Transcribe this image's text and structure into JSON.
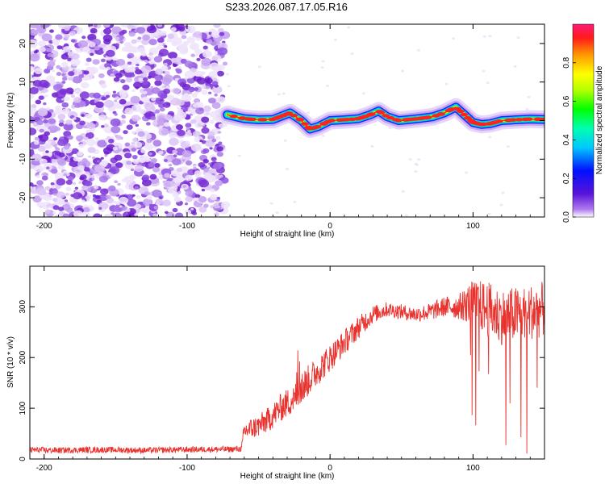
{
  "title": "S233.2026.087.17.05.R16",
  "colors": {
    "noise": "#7a2fd6",
    "snr_line": "#e8332f",
    "axis": "#000000"
  },
  "chart_data": [
    {
      "type": "heatmap",
      "name": "spectrogram",
      "xlabel": "Height of straight line (km)",
      "ylabel": "Frequency (Hz)",
      "xlim": [
        -210,
        150
      ],
      "ylim": [
        -25,
        25
      ],
      "xticks": [
        -200,
        -100,
        0,
        100
      ],
      "yticks": [
        -20,
        -10,
        0,
        10,
        20
      ],
      "noise_region": [
        -210,
        -73
      ],
      "track": {
        "x": [
          -72,
          -60,
          -50,
          -40,
          -35,
          -28,
          -20,
          -14,
          -8,
          0,
          10,
          20,
          28,
          34,
          40,
          48,
          56,
          64,
          72,
          80,
          88,
          94,
          100,
          106,
          112,
          120,
          130,
          140,
          150
        ],
        "freq": [
          1.5,
          0.5,
          0.2,
          0.3,
          1.0,
          2.0,
          0,
          -2.2,
          -1.5,
          0,
          0.2,
          0.5,
          1.5,
          2.5,
          1.0,
          0,
          0.3,
          0.6,
          1.0,
          2.0,
          3.5,
          1.5,
          -0.5,
          -1.0,
          -0.8,
          0,
          0.2,
          0.4,
          0.3
        ]
      },
      "colorbar": {
        "label": "Normalized spectral amplitude",
        "range": [
          0.0,
          1.0
        ],
        "ticks": [
          "0.0",
          "0.2",
          "0.4",
          "0.6",
          "0.8"
        ]
      }
    },
    {
      "type": "line",
      "name": "snr",
      "xlabel": "Height of straight line (km)",
      "ylabel": "SNR (10 * v/v)",
      "xlim": [
        -210,
        150
      ],
      "ylim": [
        0,
        380
      ],
      "xticks": [
        -200,
        -100,
        0,
        100
      ],
      "yticks": [
        0,
        100,
        200,
        300
      ],
      "series": [
        {
          "name": "SNR",
          "x": [
            -210,
            -190,
            -170,
            -150,
            -130,
            -110,
            -90,
            -70,
            -62,
            -60,
            -50,
            -42,
            -35,
            -25,
            -20,
            -10,
            0,
            10,
            20,
            30,
            40,
            50,
            60,
            70,
            80,
            90,
            100,
            110,
            120,
            130,
            140,
            150
          ],
          "y": [
            18,
            17,
            18,
            18,
            17,
            18,
            19,
            19,
            20,
            55,
            65,
            80,
            100,
            120,
            140,
            170,
            200,
            230,
            260,
            285,
            295,
            290,
            285,
            290,
            300,
            300,
            310,
            295,
            280,
            285,
            290,
            295
          ],
          "noise_amplitude": [
            12,
            12,
            12,
            12,
            12,
            12,
            12,
            12,
            12,
            40,
            45,
            50,
            55,
            60,
            65,
            60,
            55,
            50,
            45,
            35,
            30,
            30,
            30,
            35,
            40,
            50,
            90,
            110,
            110,
            110,
            110,
            110
          ]
        }
      ]
    }
  ]
}
